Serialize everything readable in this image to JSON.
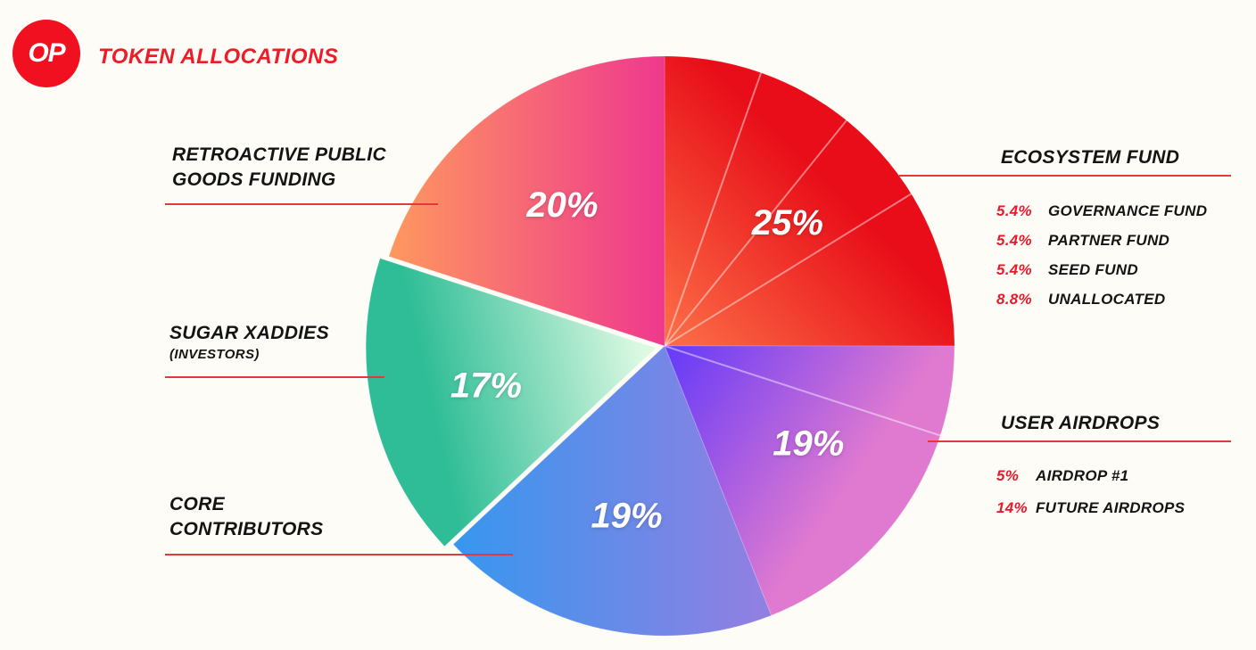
{
  "header": {
    "logo_text": "OP",
    "title": "TOKEN ALLOCATIONS"
  },
  "colors": {
    "accent_red": "#ed1c29",
    "logo_red": "#f0101f",
    "text_dark": "#141414",
    "background": "#fdfcf6",
    "pie_label_white": "#ffffff",
    "leader_line": "#e23a3a"
  },
  "chart_data": {
    "type": "pie",
    "title": "TOKEN ALLOCATIONS",
    "unit": "percent",
    "direction": "clockwise",
    "start_angle_deg": 0,
    "slices": [
      {
        "label": "ECOSYSTEM FUND",
        "value": 25,
        "pct_label": "25%",
        "color_inner": "#fb6a45",
        "color_outer": "#e80d18",
        "gradient": "center-out",
        "explode": 0,
        "sub_slices": [
          {
            "label": "GOVERNANCE FUND",
            "value": 5.4,
            "pct_label": "5.4%"
          },
          {
            "label": "PARTNER FUND",
            "value": 5.4,
            "pct_label": "5.4%"
          },
          {
            "label": "SEED FUND",
            "value": 5.4,
            "pct_label": "5.4%"
          },
          {
            "label": "UNALLOCATED",
            "value": 8.8,
            "pct_label": "8.8%"
          }
        ]
      },
      {
        "label": "USER AIRDROPS",
        "value": 19,
        "pct_label": "19%",
        "color_inner": "#6b3df6",
        "color_outer": "#e07ad0",
        "gradient": "center-out",
        "explode": 0,
        "sub_slices": [
          {
            "label": "AIRDROP #1",
            "value": 5,
            "pct_label": "5%"
          },
          {
            "label": "FUTURE AIRDROPS",
            "value": 14,
            "pct_label": "14%"
          }
        ]
      },
      {
        "label": "CORE CONTRIBUTORS",
        "value": 19,
        "pct_label": "19%",
        "color_inner": "#1f9df2",
        "color_outer": "#927fe2",
        "gradient": "left-right",
        "explode": 0
      },
      {
        "label": "SUGAR XADDIES (INVESTORS)",
        "value": 17,
        "pct_label": "17%",
        "color_inner": "#dcf9e2",
        "color_outer": "#2ebd96",
        "gradient": "center-out",
        "explode": 10
      },
      {
        "label": "RETROACTIVE PUBLIC GOODS FUNDING",
        "value": 20,
        "pct_label": "20%",
        "color_inner": "#ff9d5c",
        "color_outer": "#ee3390",
        "gradient": "left-mid",
        "explode": 0
      }
    ]
  },
  "left_labels": [
    {
      "lines": [
        "RETROACTIVE PUBLIC",
        "GOODS FUNDING"
      ]
    },
    {
      "lines": [
        "SUGAR XADDIES"
      ],
      "small": "(INVESTORS)"
    },
    {
      "lines": [
        "CORE",
        "CONTRIBUTORS"
      ]
    }
  ]
}
